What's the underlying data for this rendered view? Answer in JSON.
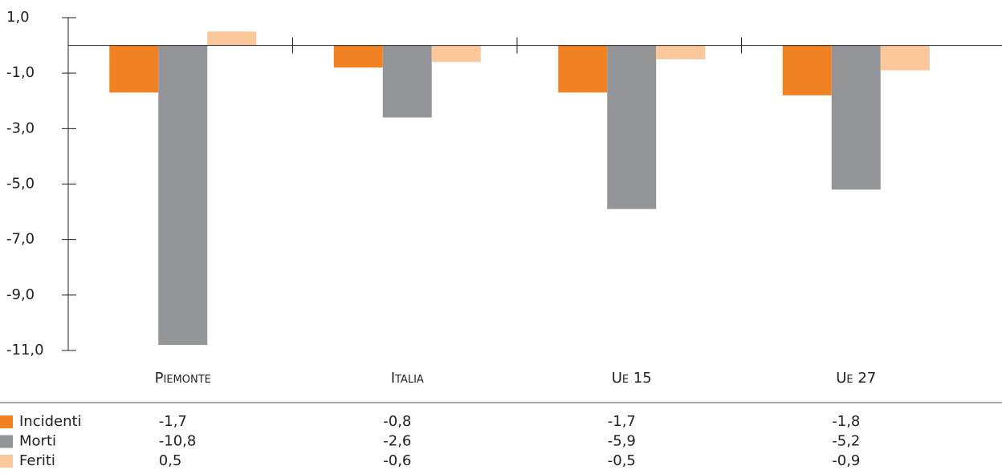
{
  "chart_data": {
    "type": "bar",
    "categories": [
      "Piemonte",
      "Italia",
      "Ue 15",
      "Ue 27"
    ],
    "series": [
      {
        "name": "Incidenti",
        "color": "#f08224",
        "values": [
          -1.7,
          -0.8,
          -1.7,
          -1.8
        ],
        "value_labels": [
          "-1,7",
          "-0,8",
          "-1,7",
          "-1,8"
        ]
      },
      {
        "name": "Morti",
        "color": "#939598",
        "values": [
          -10.8,
          -2.6,
          -5.9,
          -5.2
        ],
        "value_labels": [
          "-10,8",
          "-2,6",
          "-5,9",
          "-5,2"
        ]
      },
      {
        "name": "Feriti",
        "color": "#fcc79b",
        "values": [
          0.5,
          -0.6,
          -0.5,
          -0.9
        ],
        "value_labels": [
          "0,5",
          "-0,6",
          "-0,5",
          "-0,9"
        ]
      }
    ],
    "ylim": [
      -11,
      1
    ],
    "yticks": [
      {
        "value": 1,
        "label": "1,0"
      },
      {
        "value": -1,
        "label": "-1,0"
      },
      {
        "value": -3,
        "label": "-3,0"
      },
      {
        "value": -5,
        "label": "-5,0"
      },
      {
        "value": -7,
        "label": "-7,0"
      },
      {
        "value": -9,
        "label": "-9,0"
      },
      {
        "value": -11,
        "label": "-11,0"
      }
    ],
    "grid": false
  }
}
